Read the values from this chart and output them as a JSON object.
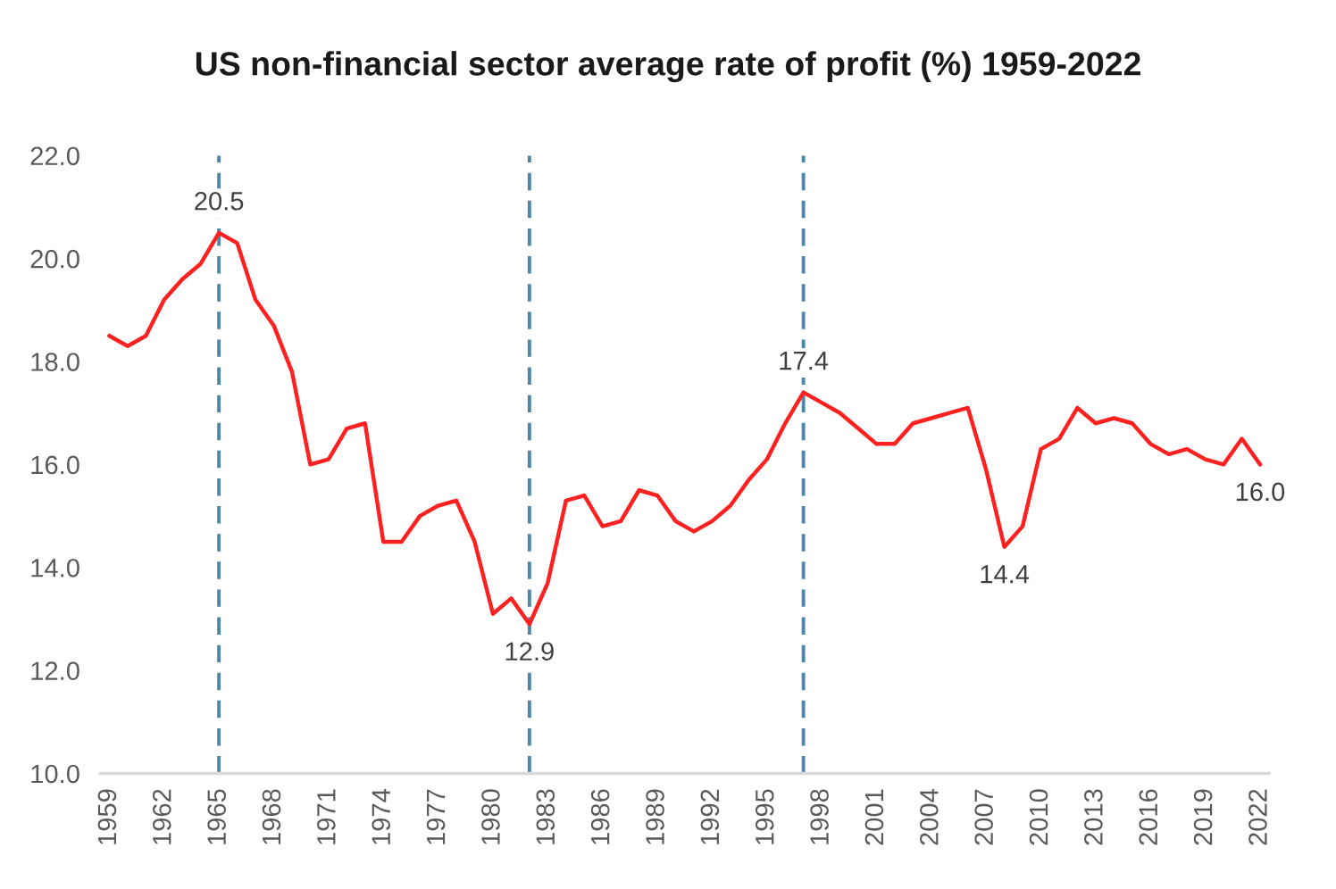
{
  "chart_data": {
    "type": "line",
    "title": "US non-financial sector average rate of profit (%) 1959-2022",
    "x": [
      1959,
      1960,
      1961,
      1962,
      1963,
      1964,
      1965,
      1966,
      1967,
      1968,
      1969,
      1970,
      1971,
      1972,
      1973,
      1974,
      1975,
      1976,
      1977,
      1978,
      1979,
      1980,
      1981,
      1982,
      1983,
      1984,
      1985,
      1986,
      1987,
      1988,
      1989,
      1990,
      1991,
      1992,
      1993,
      1994,
      1995,
      1996,
      1997,
      1998,
      1999,
      2000,
      2001,
      2002,
      2003,
      2004,
      2005,
      2006,
      2007,
      2008,
      2009,
      2010,
      2011,
      2012,
      2013,
      2014,
      2015,
      2016,
      2017,
      2018,
      2019,
      2020,
      2021,
      2022
    ],
    "series": [
      {
        "color": "#ff2020",
        "line_style": "solid",
        "values": [
          18.5,
          18.3,
          18.5,
          19.2,
          19.6,
          19.9,
          20.5,
          20.3,
          19.2,
          18.7,
          17.8,
          16.0,
          16.1,
          16.7,
          16.8,
          14.5,
          14.5,
          15.0,
          15.2,
          15.3,
          14.5,
          13.1,
          13.4,
          12.9,
          13.7,
          15.3,
          15.4,
          14.8,
          14.9,
          15.5,
          15.4,
          14.9,
          14.7,
          14.9,
          15.2,
          15.7,
          16.1,
          16.8,
          17.4,
          17.2,
          17.0,
          16.7,
          16.4,
          16.4,
          16.8,
          16.9,
          17.0,
          17.1,
          15.9,
          14.4,
          14.8,
          16.3,
          16.5,
          17.1,
          16.8,
          16.9,
          16.8,
          16.4,
          16.2,
          16.3,
          16.1,
          16.0,
          16.5,
          16.0
        ],
        "value_labels": [
          null,
          null,
          null,
          null,
          null,
          null,
          "20.5",
          null,
          null,
          null,
          null,
          null,
          null,
          null,
          null,
          null,
          null,
          null,
          null,
          null,
          null,
          null,
          null,
          "12.9",
          null,
          null,
          null,
          null,
          null,
          null,
          null,
          null,
          null,
          null,
          null,
          null,
          null,
          null,
          "17.4",
          null,
          null,
          null,
          null,
          null,
          null,
          null,
          null,
          null,
          null,
          "14.4",
          null,
          null,
          null,
          null,
          null,
          null,
          null,
          null,
          null,
          null,
          null,
          null,
          null,
          "16.0"
        ]
      }
    ],
    "xlim": [
      1958.5,
      2022.5
    ],
    "xticks": [
      1959,
      1962,
      1965,
      1968,
      1971,
      1974,
      1977,
      1980,
      1983,
      1986,
      1989,
      1992,
      1995,
      1998,
      2001,
      2004,
      2007,
      2010,
      2013,
      2016,
      2019,
      2022
    ],
    "ylim": [
      10,
      22
    ],
    "yticks": [
      {
        "value": 10,
        "label": "10.0"
      },
      {
        "value": 12,
        "label": "12.0"
      },
      {
        "value": 14,
        "label": "14.0"
      },
      {
        "value": 16,
        "label": "16.0"
      },
      {
        "value": 18,
        "label": "18.0"
      },
      {
        "value": 20,
        "label": "20.0"
      },
      {
        "value": 22,
        "label": "22.0"
      }
    ],
    "ref_lines": [
      {
        "axis": "x",
        "value": 1965,
        "color": "#4f86a8",
        "line_style": "dashed"
      },
      {
        "axis": "x",
        "value": 1982,
        "color": "#4f86a8",
        "line_style": "dashed"
      },
      {
        "axis": "x",
        "value": 1997,
        "color": "#4f86a8",
        "line_style": "dashed"
      }
    ],
    "grid": false,
    "legend": false
  }
}
